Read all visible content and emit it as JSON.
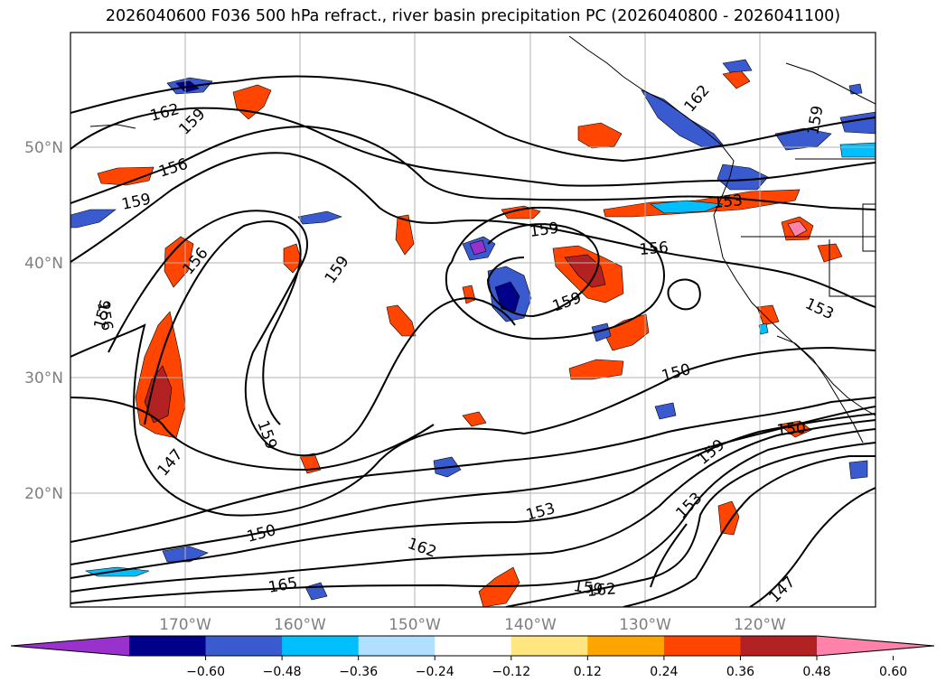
{
  "title": "2026040600 F036 500 hPa refract., river basin precipitation PC (2026040800 - 2026041100)",
  "lat_ticks": [
    "50°N",
    "40°N",
    "30°N",
    "20°N"
  ],
  "lon_ticks": [
    "170°W",
    "160°W",
    "150°W",
    "140°W",
    "130°W",
    "120°W"
  ],
  "contour_labels": [
    "162",
    "159",
    "156",
    "159",
    "156",
    "156",
    "156",
    "159",
    "159",
    "156",
    "159",
    "150",
    "159",
    "147",
    "150",
    "165",
    "162",
    "153",
    "159",
    "162",
    "159",
    "153",
    "150",
    "147",
    "162",
    "153",
    "159",
    "153"
  ],
  "colorbar": {
    "ticks": [
      "−0.60",
      "−0.48",
      "−0.36",
      "−0.24",
      "−0.12",
      "0.12",
      "0.24",
      "0.36",
      "0.48",
      "0.60"
    ],
    "colors": [
      "#9932CC",
      "#00008B",
      "#3A5BD0",
      "#00BFFF",
      "#B0E0FF",
      "#FFFFFF",
      "#FFE680",
      "#FFA500",
      "#FF4500",
      "#B22222",
      "#FF82AB"
    ]
  }
}
